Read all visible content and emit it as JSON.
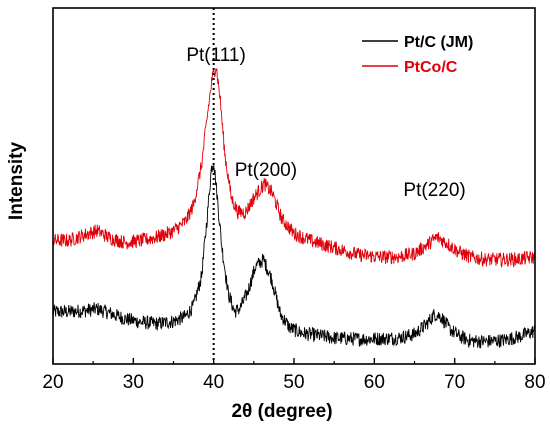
{
  "chart_data": {
    "type": "line",
    "title": "",
    "xlabel": "2θ (degree)",
    "ylabel": "Intensity",
    "xlim": [
      20,
      80
    ],
    "ylim": [
      0,
      1.5
    ],
    "x_ticks": [
      20,
      30,
      40,
      50,
      60,
      70,
      80
    ],
    "y_ticks_shown": false,
    "grid": false,
    "legend_position": "top-right",
    "reference_line": {
      "x": 40,
      "style": "dotted"
    },
    "annotations": [
      {
        "text": "Pt(111)",
        "x": 40.3
      },
      {
        "text": "Pt(200)",
        "x": 46.5
      },
      {
        "text": "Pt(220)",
        "x": 67.5
      }
    ],
    "series": [
      {
        "name": "Pt/C (JM)",
        "color": "#000000",
        "points": [
          [
            20,
            0.22
          ],
          [
            22,
            0.22
          ],
          [
            24,
            0.225
          ],
          [
            25.5,
            0.232
          ],
          [
            27,
            0.215
          ],
          [
            29,
            0.19
          ],
          [
            31,
            0.176
          ],
          [
            33,
            0.17
          ],
          [
            35,
            0.18
          ],
          [
            36.5,
            0.2
          ],
          [
            37.5,
            0.245
          ],
          [
            38.5,
            0.37
          ],
          [
            39.2,
            0.62
          ],
          [
            39.7,
            0.82
          ],
          [
            40.0,
            0.86
          ],
          [
            40.4,
            0.72
          ],
          [
            41,
            0.5
          ],
          [
            41.8,
            0.3
          ],
          [
            42.6,
            0.22
          ],
          [
            43.3,
            0.235
          ],
          [
            44.2,
            0.3
          ],
          [
            45.2,
            0.41
          ],
          [
            46.2,
            0.44
          ],
          [
            47.2,
            0.36
          ],
          [
            48.3,
            0.21
          ],
          [
            49.5,
            0.152
          ],
          [
            51,
            0.13
          ],
          [
            53,
            0.12
          ],
          [
            55,
            0.11
          ],
          [
            58,
            0.105
          ],
          [
            61,
            0.107
          ],
          [
            63,
            0.11
          ],
          [
            65,
            0.125
          ],
          [
            66.5,
            0.168
          ],
          [
            67.5,
            0.21
          ],
          [
            68.3,
            0.2
          ],
          [
            69.3,
            0.15
          ],
          [
            70.5,
            0.118
          ],
          [
            72,
            0.097
          ],
          [
            74,
            0.095
          ],
          [
            76,
            0.1
          ],
          [
            78,
            0.115
          ],
          [
            80,
            0.14
          ]
        ]
      },
      {
        "name": "PtCo/C",
        "color": "#e0000a",
        "points": [
          [
            20,
            0.52
          ],
          [
            22,
            0.52
          ],
          [
            24,
            0.545
          ],
          [
            25.5,
            0.562
          ],
          [
            27,
            0.532
          ],
          [
            29,
            0.512
          ],
          [
            31,
            0.52
          ],
          [
            33,
            0.535
          ],
          [
            35,
            0.56
          ],
          [
            36.5,
            0.6
          ],
          [
            37.5,
            0.67
          ],
          [
            38.5,
            0.84
          ],
          [
            39.3,
            1.07
          ],
          [
            39.8,
            1.2
          ],
          [
            40.3,
            1.26
          ],
          [
            40.8,
            1.12
          ],
          [
            41.4,
            0.88
          ],
          [
            42.2,
            0.7
          ],
          [
            43,
            0.64
          ],
          [
            44,
            0.64
          ],
          [
            45,
            0.7
          ],
          [
            46.3,
            0.76
          ],
          [
            47.3,
            0.72
          ],
          [
            48.5,
            0.61
          ],
          [
            50,
            0.55
          ],
          [
            52,
            0.52
          ],
          [
            55,
            0.49
          ],
          [
            58,
            0.46
          ],
          [
            61,
            0.45
          ],
          [
            63,
            0.452
          ],
          [
            65,
            0.465
          ],
          [
            66.5,
            0.5
          ],
          [
            67.8,
            0.535
          ],
          [
            69,
            0.51
          ],
          [
            70.5,
            0.472
          ],
          [
            72,
            0.45
          ],
          [
            74,
            0.44
          ],
          [
            76,
            0.44
          ],
          [
            78,
            0.442
          ],
          [
            80,
            0.45
          ]
        ]
      }
    ]
  }
}
